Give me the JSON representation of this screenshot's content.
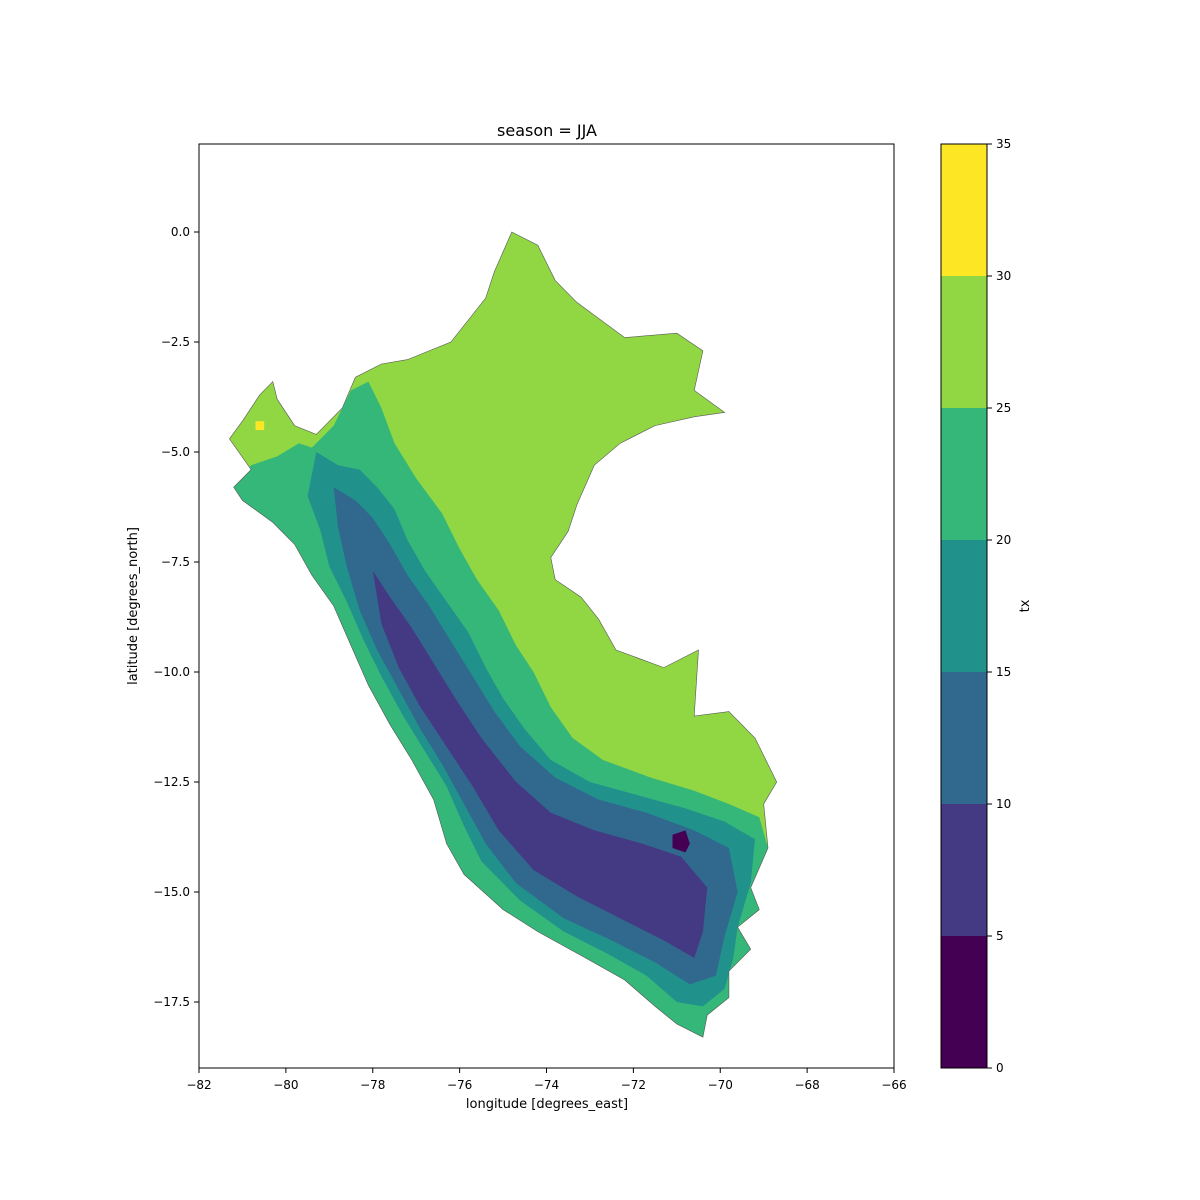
{
  "chart_data": {
    "type": "filled-contour-map",
    "title": "season = JJA",
    "xlabel": "longitude [degrees_east]",
    "ylabel": "latitude [degrees_north]",
    "xlim": [
      -82,
      -66
    ],
    "ylim": [
      -19,
      2
    ],
    "x_ticks": [
      -82,
      -80,
      -78,
      -76,
      -74,
      -72,
      -70,
      -68,
      -66
    ],
    "x_tick_labels": [
      "−82",
      "−80",
      "−78",
      "−76",
      "−74",
      "−72",
      "−70",
      "−68",
      "−66"
    ],
    "y_ticks": [
      0.0,
      -2.5,
      -5.0,
      -7.5,
      -10.0,
      -12.5,
      -15.0,
      -17.5
    ],
    "y_tick_labels": [
      "0.0",
      "−2.5",
      "−5.0",
      "−7.5",
      "−10.0",
      "−12.5",
      "−15.0",
      "−17.5"
    ],
    "colorbar": {
      "label": "tx",
      "levels": [
        0,
        5,
        10,
        15,
        20,
        25,
        30,
        35
      ],
      "level_labels": [
        "0",
        "5",
        "10",
        "15",
        "20",
        "25",
        "30",
        "35"
      ],
      "colors": [
        "#440154",
        "#443983",
        "#31688e",
        "#21918c",
        "#35b779",
        "#90d743",
        "#fde725"
      ]
    },
    "outline": [
      [
        -81.3,
        -4.7
      ],
      [
        -81.0,
        -4.3
      ],
      [
        -80.6,
        -3.7
      ],
      [
        -80.3,
        -3.4
      ],
      [
        -80.2,
        -3.8
      ],
      [
        -79.8,
        -4.4
      ],
      [
        -79.3,
        -4.6
      ],
      [
        -78.7,
        -4.0
      ],
      [
        -78.4,
        -3.3
      ],
      [
        -77.8,
        -3.0
      ],
      [
        -77.2,
        -2.9
      ],
      [
        -76.2,
        -2.5
      ],
      [
        -75.4,
        -1.5
      ],
      [
        -75.2,
        -0.9
      ],
      [
        -74.8,
        0.0
      ],
      [
        -74.2,
        -0.3
      ],
      [
        -73.8,
        -1.1
      ],
      [
        -73.3,
        -1.6
      ],
      [
        -72.2,
        -2.4
      ],
      [
        -71.0,
        -2.3
      ],
      [
        -70.4,
        -2.7
      ],
      [
        -70.6,
        -3.6
      ],
      [
        -69.9,
        -4.1
      ],
      [
        -70.6,
        -4.2
      ],
      [
        -71.5,
        -4.4
      ],
      [
        -72.3,
        -4.8
      ],
      [
        -72.9,
        -5.3
      ],
      [
        -73.3,
        -6.2
      ],
      [
        -73.5,
        -6.8
      ],
      [
        -73.9,
        -7.4
      ],
      [
        -73.8,
        -7.9
      ],
      [
        -73.2,
        -8.3
      ],
      [
        -72.8,
        -8.8
      ],
      [
        -72.4,
        -9.5
      ],
      [
        -71.3,
        -9.9
      ],
      [
        -70.5,
        -9.5
      ],
      [
        -70.6,
        -11.0
      ],
      [
        -69.8,
        -10.9
      ],
      [
        -69.2,
        -11.5
      ],
      [
        -68.7,
        -12.5
      ],
      [
        -69.0,
        -13.0
      ],
      [
        -68.9,
        -14.0
      ],
      [
        -69.3,
        -14.9
      ],
      [
        -69.1,
        -15.4
      ],
      [
        -69.6,
        -15.8
      ],
      [
        -69.3,
        -16.3
      ],
      [
        -69.8,
        -16.8
      ],
      [
        -69.8,
        -17.4
      ],
      [
        -70.3,
        -17.8
      ],
      [
        -70.4,
        -18.3
      ],
      [
        -71.0,
        -18.0
      ],
      [
        -71.5,
        -17.6
      ],
      [
        -72.2,
        -17.0
      ],
      [
        -73.1,
        -16.5
      ],
      [
        -74.2,
        -15.9
      ],
      [
        -75.0,
        -15.4
      ],
      [
        -75.9,
        -14.6
      ],
      [
        -76.3,
        -13.9
      ],
      [
        -76.6,
        -12.9
      ],
      [
        -77.1,
        -12.0
      ],
      [
        -77.6,
        -11.2
      ],
      [
        -78.1,
        -10.3
      ],
      [
        -78.5,
        -9.4
      ],
      [
        -78.9,
        -8.5
      ],
      [
        -79.4,
        -7.8
      ],
      [
        -79.8,
        -7.1
      ],
      [
        -80.3,
        -6.6
      ],
      [
        -81.0,
        -6.1
      ],
      [
        -81.2,
        -5.8
      ],
      [
        -80.8,
        -5.4
      ],
      [
        -81.3,
        -4.7
      ]
    ],
    "regions": [
      {
        "level_index": 4,
        "points": [
          [
            -80.8,
            -5.3
          ],
          [
            -80.2,
            -5.1
          ],
          [
            -79.7,
            -4.8
          ],
          [
            -79.4,
            -4.9
          ],
          [
            -78.9,
            -4.4
          ],
          [
            -78.5,
            -3.6
          ],
          [
            -78.1,
            -3.4
          ],
          [
            -77.8,
            -4.0
          ],
          [
            -77.5,
            -4.8
          ],
          [
            -77.0,
            -5.6
          ],
          [
            -76.4,
            -6.4
          ],
          [
            -76.0,
            -7.2
          ],
          [
            -75.6,
            -7.9
          ],
          [
            -75.1,
            -8.6
          ],
          [
            -74.7,
            -9.4
          ],
          [
            -74.3,
            -10.0
          ],
          [
            -73.9,
            -10.8
          ],
          [
            -73.4,
            -11.5
          ],
          [
            -72.7,
            -12.0
          ],
          [
            -71.6,
            -12.4
          ],
          [
            -70.6,
            -12.7
          ],
          [
            -69.8,
            -13.0
          ],
          [
            -69.1,
            -13.3
          ],
          [
            -68.9,
            -14.0
          ],
          [
            -69.3,
            -14.9
          ],
          [
            -69.1,
            -15.4
          ],
          [
            -69.6,
            -15.8
          ],
          [
            -69.3,
            -16.3
          ],
          [
            -69.8,
            -16.8
          ],
          [
            -69.8,
            -17.4
          ],
          [
            -70.3,
            -17.8
          ],
          [
            -70.4,
            -18.3
          ],
          [
            -71.0,
            -18.0
          ],
          [
            -71.5,
            -17.6
          ],
          [
            -72.2,
            -17.0
          ],
          [
            -73.1,
            -16.5
          ],
          [
            -74.2,
            -15.9
          ],
          [
            -75.0,
            -15.4
          ],
          [
            -75.9,
            -14.6
          ],
          [
            -76.3,
            -13.9
          ],
          [
            -76.6,
            -12.9
          ],
          [
            -77.1,
            -12.0
          ],
          [
            -77.6,
            -11.2
          ],
          [
            -78.1,
            -10.3
          ],
          [
            -78.5,
            -9.4
          ],
          [
            -78.9,
            -8.5
          ],
          [
            -79.4,
            -7.8
          ],
          [
            -79.8,
            -7.1
          ],
          [
            -80.3,
            -6.6
          ],
          [
            -81.0,
            -6.1
          ],
          [
            -81.2,
            -5.8
          ]
        ]
      },
      {
        "level_index": 3,
        "points": [
          [
            -79.3,
            -5.0
          ],
          [
            -78.8,
            -5.3
          ],
          [
            -78.3,
            -5.4
          ],
          [
            -77.9,
            -5.8
          ],
          [
            -77.5,
            -6.3
          ],
          [
            -77.2,
            -7.0
          ],
          [
            -76.8,
            -7.7
          ],
          [
            -76.3,
            -8.4
          ],
          [
            -75.8,
            -9.1
          ],
          [
            -75.4,
            -9.9
          ],
          [
            -75.0,
            -10.6
          ],
          [
            -74.5,
            -11.3
          ],
          [
            -73.9,
            -12.0
          ],
          [
            -73.0,
            -12.5
          ],
          [
            -71.9,
            -12.8
          ],
          [
            -70.8,
            -13.1
          ],
          [
            -69.9,
            -13.4
          ],
          [
            -69.2,
            -13.8
          ],
          [
            -69.3,
            -14.8
          ],
          [
            -69.6,
            -15.8
          ],
          [
            -69.7,
            -16.5
          ],
          [
            -69.9,
            -17.2
          ],
          [
            -70.4,
            -17.6
          ],
          [
            -71.0,
            -17.5
          ],
          [
            -71.7,
            -16.9
          ],
          [
            -72.6,
            -16.4
          ],
          [
            -73.6,
            -15.9
          ],
          [
            -74.6,
            -15.2
          ],
          [
            -75.5,
            -14.3
          ],
          [
            -75.9,
            -13.5
          ],
          [
            -76.3,
            -12.6
          ],
          [
            -76.8,
            -11.8
          ],
          [
            -77.3,
            -11.0
          ],
          [
            -77.8,
            -10.1
          ],
          [
            -78.2,
            -9.3
          ],
          [
            -78.6,
            -8.4
          ],
          [
            -79.0,
            -7.6
          ],
          [
            -79.2,
            -6.8
          ],
          [
            -79.5,
            -6.0
          ]
        ]
      },
      {
        "level_index": 2,
        "points": [
          [
            -78.9,
            -5.8
          ],
          [
            -78.4,
            -6.1
          ],
          [
            -78.0,
            -6.5
          ],
          [
            -77.6,
            -7.1
          ],
          [
            -77.2,
            -7.8
          ],
          [
            -76.7,
            -8.5
          ],
          [
            -76.2,
            -9.3
          ],
          [
            -75.7,
            -10.1
          ],
          [
            -75.2,
            -10.9
          ],
          [
            -74.6,
            -11.7
          ],
          [
            -73.8,
            -12.4
          ],
          [
            -72.8,
            -12.9
          ],
          [
            -71.7,
            -13.2
          ],
          [
            -70.6,
            -13.6
          ],
          [
            -69.8,
            -14.0
          ],
          [
            -69.6,
            -15.0
          ],
          [
            -69.9,
            -16.0
          ],
          [
            -70.1,
            -16.9
          ],
          [
            -70.7,
            -17.1
          ],
          [
            -71.5,
            -16.6
          ],
          [
            -72.5,
            -16.1
          ],
          [
            -73.6,
            -15.6
          ],
          [
            -74.7,
            -14.8
          ],
          [
            -75.4,
            -13.9
          ],
          [
            -75.9,
            -13.0
          ],
          [
            -76.4,
            -12.1
          ],
          [
            -76.9,
            -11.3
          ],
          [
            -77.4,
            -10.4
          ],
          [
            -77.9,
            -9.5
          ],
          [
            -78.3,
            -8.6
          ],
          [
            -78.6,
            -7.6
          ],
          [
            -78.8,
            -6.7
          ]
        ]
      },
      {
        "level_index": 1,
        "points": [
          [
            -78.0,
            -7.7
          ],
          [
            -77.6,
            -8.3
          ],
          [
            -77.1,
            -9.0
          ],
          [
            -76.6,
            -9.8
          ],
          [
            -76.1,
            -10.6
          ],
          [
            -75.5,
            -11.5
          ],
          [
            -74.7,
            -12.5
          ],
          [
            -73.9,
            -13.2
          ],
          [
            -72.9,
            -13.6
          ],
          [
            -71.8,
            -13.9
          ],
          [
            -70.9,
            -14.2
          ],
          [
            -70.3,
            -14.9
          ],
          [
            -70.4,
            -15.9
          ],
          [
            -70.6,
            -16.5
          ],
          [
            -71.3,
            -16.1
          ],
          [
            -72.3,
            -15.6
          ],
          [
            -73.3,
            -15.1
          ],
          [
            -74.3,
            -14.5
          ],
          [
            -75.1,
            -13.6
          ],
          [
            -75.7,
            -12.6
          ],
          [
            -76.3,
            -11.7
          ],
          [
            -76.9,
            -10.8
          ],
          [
            -77.4,
            -9.9
          ],
          [
            -77.8,
            -8.9
          ]
        ]
      },
      {
        "level_index": 0,
        "points": [
          [
            -71.1,
            -13.7
          ],
          [
            -70.8,
            -13.6
          ],
          [
            -70.7,
            -13.9
          ],
          [
            -70.8,
            -14.1
          ],
          [
            -71.1,
            -14.0
          ]
        ]
      },
      {
        "level_index": 6,
        "points": [
          [
            -80.7,
            -4.3
          ],
          [
            -80.5,
            -4.3
          ],
          [
            -80.5,
            -4.5
          ],
          [
            -80.7,
            -4.5
          ]
        ]
      }
    ]
  }
}
